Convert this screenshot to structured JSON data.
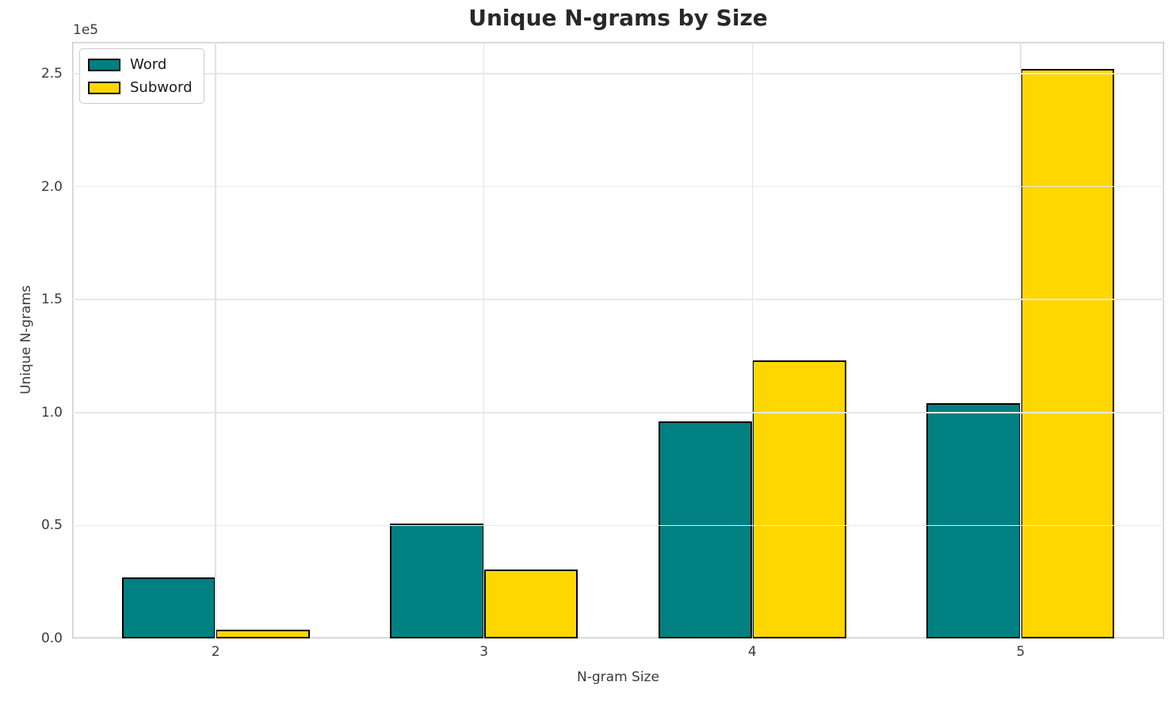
{
  "chart_data": {
    "type": "bar",
    "title": "Unique N-grams by Size",
    "xlabel": "N-gram Size",
    "ylabel": "Unique N-grams",
    "y_offset_label": "1e5",
    "categories": [
      "2",
      "3",
      "4",
      "5"
    ],
    "series": [
      {
        "name": "Word",
        "color": "#008080",
        "values": [
          27000,
          51000,
          96000,
          104000
        ]
      },
      {
        "name": "Subword",
        "color": "#FFD700",
        "values": [
          3800,
          30500,
          123000,
          252000
        ]
      }
    ],
    "ylim": [
      0,
      264000
    ],
    "yticks": {
      "values": [
        0,
        50000,
        100000,
        150000,
        200000,
        250000
      ],
      "labels": [
        "0.0",
        "0.5",
        "1.0",
        "1.5",
        "2.0",
        "2.5"
      ]
    },
    "grid": true,
    "legend_position": "upper left",
    "bar_group_width_fraction": 0.35
  }
}
